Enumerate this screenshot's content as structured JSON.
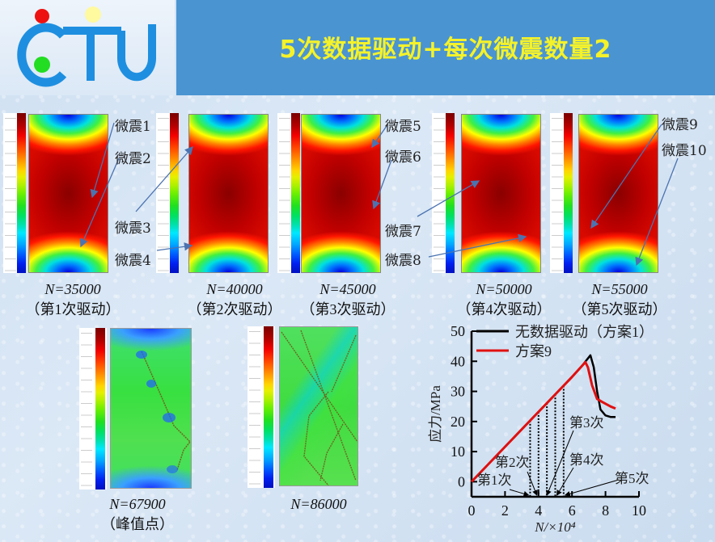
{
  "header": {
    "logo_text": "CTU",
    "title": "5次数据驱动+每次微震数量2",
    "colors": {
      "bar": "#4a94d2",
      "title": "#f5f22a",
      "logo_blue": "#1e8fe0",
      "dot_red": "#ee1111",
      "dot_yellow": "#fff9a0",
      "dot_green": "#22dd22"
    }
  },
  "panels_top": [
    {
      "caption_n": "N=35000",
      "caption_sub": "（第1次驱动）",
      "quakes": [
        "微震1",
        "微震2"
      ]
    },
    {
      "caption_n": "N=40000",
      "caption_sub": "（第2次驱动）",
      "quakes": [
        "微震3",
        "微震4"
      ]
    },
    {
      "caption_n": "N=45000",
      "caption_sub": "（第3次驱动）",
      "quakes": [
        "微震5",
        "微震6"
      ]
    },
    {
      "caption_n": "N=50000",
      "caption_sub": "（第4次驱动）",
      "quakes": [
        "微震7",
        "微震8"
      ]
    },
    {
      "caption_n": "N=55000",
      "caption_sub": "（第5次驱动）",
      "quakes": [
        "微震9",
        "微震10"
      ]
    }
  ],
  "panels_bottom": [
    {
      "caption_n": "N=67900",
      "caption_sub": "（峰值点）"
    },
    {
      "caption_n": "N=86000",
      "caption_sub": ""
    }
  ],
  "chart_data": {
    "type": "line",
    "title": "",
    "xlabel": "N/×10⁴",
    "ylabel": "应力/MPa",
    "xlim": [
      0,
      10
    ],
    "ylim": [
      -5,
      50
    ],
    "xticks": [
      0,
      2,
      4,
      6,
      8,
      10
    ],
    "yticks": [
      0,
      10,
      20,
      30,
      40,
      50
    ],
    "legend_position": "top-left",
    "series": [
      {
        "name": "无数据驱动（方案1）",
        "color": "#000000",
        "x": [
          0,
          1,
          2,
          3,
          4,
          5,
          6,
          6.6,
          7.1,
          7.3,
          7.5,
          7.7,
          8.0,
          8.3,
          8.6
        ],
        "y": [
          0,
          5.8,
          11.6,
          17.4,
          23.2,
          29.0,
          34.8,
          38.5,
          42.0,
          38,
          30,
          24,
          22,
          21.5,
          21.5
        ]
      },
      {
        "name": "方案9",
        "color": "#e01010",
        "x": [
          0,
          1,
          2,
          3,
          4,
          5,
          6,
          6.8,
          6.95,
          7.2,
          7.5,
          7.8,
          8.3,
          8.6
        ],
        "y": [
          0,
          5.8,
          11.6,
          17.4,
          23.2,
          29.0,
          34.8,
          39.7,
          38,
          32,
          27.5,
          26.5,
          25,
          24.3
        ]
      }
    ],
    "drive_markers": [
      {
        "label": "第1次",
        "x": 3.5,
        "y": 20.3
      },
      {
        "label": "第2次",
        "x": 4.0,
        "y": 23.2
      },
      {
        "label": "第3次",
        "x": 4.5,
        "y": 26.1
      },
      {
        "label": "第4次",
        "x": 5.0,
        "y": 29.0
      },
      {
        "label": "第5次",
        "x": 5.5,
        "y": 31.9
      }
    ]
  }
}
